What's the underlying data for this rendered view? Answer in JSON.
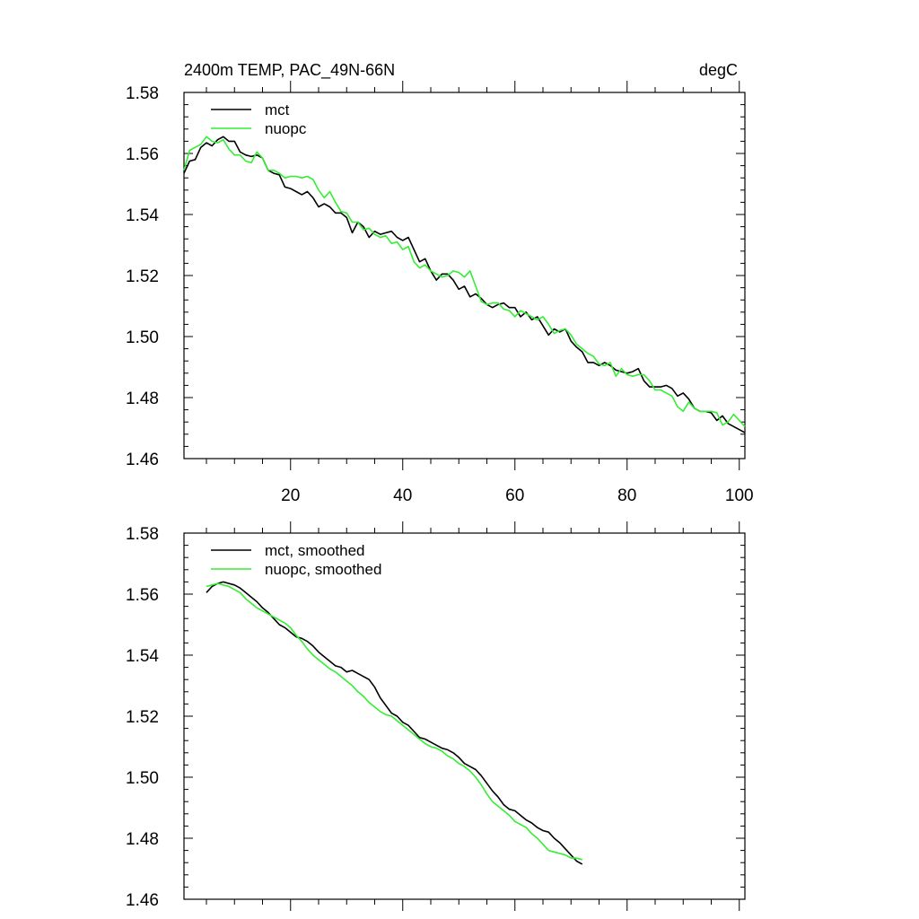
{
  "chart_data": [
    {
      "type": "line",
      "title": "2400m TEMP, PAC_49N-66N",
      "units_label": "degC",
      "xlabel": "",
      "ylabel": "",
      "xlim": [
        1,
        101
      ],
      "ylim": [
        1.46,
        1.58
      ],
      "xticks": [
        20,
        40,
        60,
        80,
        100
      ],
      "xtick_labels": [
        "20",
        "40",
        "60",
        "80",
        "100"
      ],
      "yticks": [
        1.46,
        1.48,
        1.5,
        1.52,
        1.54,
        1.56,
        1.58
      ],
      "ytick_labels": [
        "1.46",
        "1.48",
        "1.50",
        "1.52",
        "1.54",
        "1.56",
        "1.58"
      ],
      "legend_position": "top-left",
      "series": [
        {
          "name": "mct",
          "color": "#000000",
          "x_start": 1,
          "values": [
            1.5535,
            1.5575,
            1.558,
            1.562,
            1.5635,
            1.5625,
            1.5645,
            1.5655,
            1.564,
            1.564,
            1.5605,
            1.5595,
            1.559,
            1.5595,
            1.5585,
            1.5545,
            1.5535,
            1.553,
            1.549,
            1.5485,
            1.5475,
            1.5465,
            1.5475,
            1.5455,
            1.5425,
            1.5435,
            1.5425,
            1.5405,
            1.5405,
            1.539,
            1.534,
            1.5375,
            1.536,
            1.5325,
            1.5345,
            1.5335,
            1.534,
            1.5345,
            1.5325,
            1.5315,
            1.5325,
            1.5285,
            1.5245,
            1.5255,
            1.5215,
            1.5185,
            1.5205,
            1.5205,
            1.5185,
            1.5155,
            1.5165,
            1.513,
            1.514,
            1.5125,
            1.5105,
            1.5095,
            1.5105,
            1.511,
            1.5095,
            1.5095,
            1.5065,
            1.508,
            1.5055,
            1.5065,
            1.5035,
            1.5005,
            1.5025,
            1.5015,
            1.5025,
            1.4985,
            1.4965,
            1.495,
            1.4915,
            1.4915,
            1.4905,
            1.4915,
            1.4905,
            1.489,
            1.4885,
            1.488,
            1.4885,
            1.4895,
            1.4855,
            1.4835,
            1.4835,
            1.4835,
            1.484,
            1.483,
            1.4805,
            1.4815,
            1.4795,
            1.4765,
            1.4755,
            1.4755,
            1.475,
            1.4725,
            1.474,
            1.4715,
            1.4705,
            1.4695,
            1.4685
          ]
        },
        {
          "name": "nuopc",
          "color": "#33ee33",
          "x_start": 1,
          "values": [
            1.5545,
            1.561,
            1.562,
            1.563,
            1.5655,
            1.564,
            1.5635,
            1.5645,
            1.5615,
            1.5595,
            1.5595,
            1.5575,
            1.557,
            1.5605,
            1.5585,
            1.5545,
            1.5545,
            1.5535,
            1.552,
            1.5525,
            1.5525,
            1.552,
            1.5525,
            1.5515,
            1.548,
            1.5455,
            1.5475,
            1.544,
            1.541,
            1.5405,
            1.5375,
            1.5375,
            1.535,
            1.5355,
            1.5335,
            1.5325,
            1.533,
            1.5305,
            1.531,
            1.5285,
            1.5295,
            1.5245,
            1.5225,
            1.5235,
            1.5215,
            1.5205,
            1.5195,
            1.52,
            1.5215,
            1.521,
            1.5195,
            1.5215,
            1.5165,
            1.5115,
            1.5105,
            1.511,
            1.511,
            1.509,
            1.5085,
            1.5065,
            1.5085,
            1.5075,
            1.5065,
            1.5055,
            1.5065,
            1.504,
            1.501,
            1.502,
            1.5025,
            1.5005,
            1.4975,
            1.496,
            1.4945,
            1.4935,
            1.491,
            1.4905,
            1.4915,
            1.487,
            1.4895,
            1.4875,
            1.487,
            1.4875,
            1.4875,
            1.4855,
            1.4825,
            1.4825,
            1.4815,
            1.4805,
            1.477,
            1.4755,
            1.4785,
            1.4765,
            1.4755,
            1.4755,
            1.4755,
            1.475,
            1.471,
            1.472,
            1.4745,
            1.4725,
            1.4705
          ]
        }
      ]
    },
    {
      "type": "line",
      "title": "",
      "xlabel": "",
      "ylabel": "",
      "xlim": [
        1,
        101
      ],
      "ylim": [
        1.46,
        1.58
      ],
      "xticks": [
        20,
        40,
        60,
        80,
        100
      ],
      "xtick_labels": [],
      "yticks": [
        1.46,
        1.48,
        1.5,
        1.52,
        1.54,
        1.56,
        1.58
      ],
      "ytick_labels": [
        "1.46",
        "1.48",
        "1.50",
        "1.52",
        "1.54",
        "1.56",
        "1.58"
      ],
      "legend_position": "top-left",
      "series": [
        {
          "name": "mct, smoothed",
          "color": "#000000",
          "x_start": 5,
          "values": [
            1.5605,
            1.5625,
            1.5635,
            1.564,
            1.5635,
            1.563,
            1.562,
            1.5605,
            1.559,
            1.5575,
            1.5555,
            1.554,
            1.552,
            1.55,
            1.549,
            1.5475,
            1.546,
            1.5455,
            1.5445,
            1.543,
            1.541,
            1.5395,
            1.538,
            1.5365,
            1.536,
            1.5345,
            1.535,
            1.534,
            1.533,
            1.532,
            1.5295,
            1.526,
            1.5235,
            1.521,
            1.52,
            1.518,
            1.517,
            1.515,
            1.513,
            1.5125,
            1.5115,
            1.5105,
            1.5095,
            1.509,
            1.508,
            1.5065,
            1.5045,
            1.5035,
            1.5025,
            1.5005,
            1.498,
            1.4955,
            1.4935,
            1.491,
            1.4895,
            1.489,
            1.4875,
            1.486,
            1.485,
            1.4835,
            1.4825,
            1.482,
            1.48,
            1.4785,
            1.4765,
            1.4745,
            1.4725,
            1.4715
          ]
        },
        {
          "name": "nuopc, smoothed",
          "color": "#33ee33",
          "x_start": 5,
          "values": [
            1.5625,
            1.563,
            1.5635,
            1.563,
            1.5625,
            1.5615,
            1.5605,
            1.5585,
            1.557,
            1.5555,
            1.5545,
            1.5535,
            1.5525,
            1.5515,
            1.5505,
            1.549,
            1.5465,
            1.5445,
            1.542,
            1.54,
            1.5385,
            1.537,
            1.5355,
            1.5345,
            1.533,
            1.5315,
            1.53,
            1.528,
            1.5265,
            1.5245,
            1.523,
            1.5215,
            1.5205,
            1.52,
            1.5185,
            1.517,
            1.5155,
            1.514,
            1.5125,
            1.511,
            1.51,
            1.5095,
            1.5085,
            1.507,
            1.506,
            1.5045,
            1.5035,
            1.502,
            1.5,
            1.4975,
            1.4945,
            1.492,
            1.4905,
            1.489,
            1.4875,
            1.4855,
            1.4845,
            1.4835,
            1.4815,
            1.48,
            1.478,
            1.476,
            1.4755,
            1.475,
            1.4745,
            1.4735,
            1.4735,
            1.473
          ]
        }
      ]
    }
  ]
}
